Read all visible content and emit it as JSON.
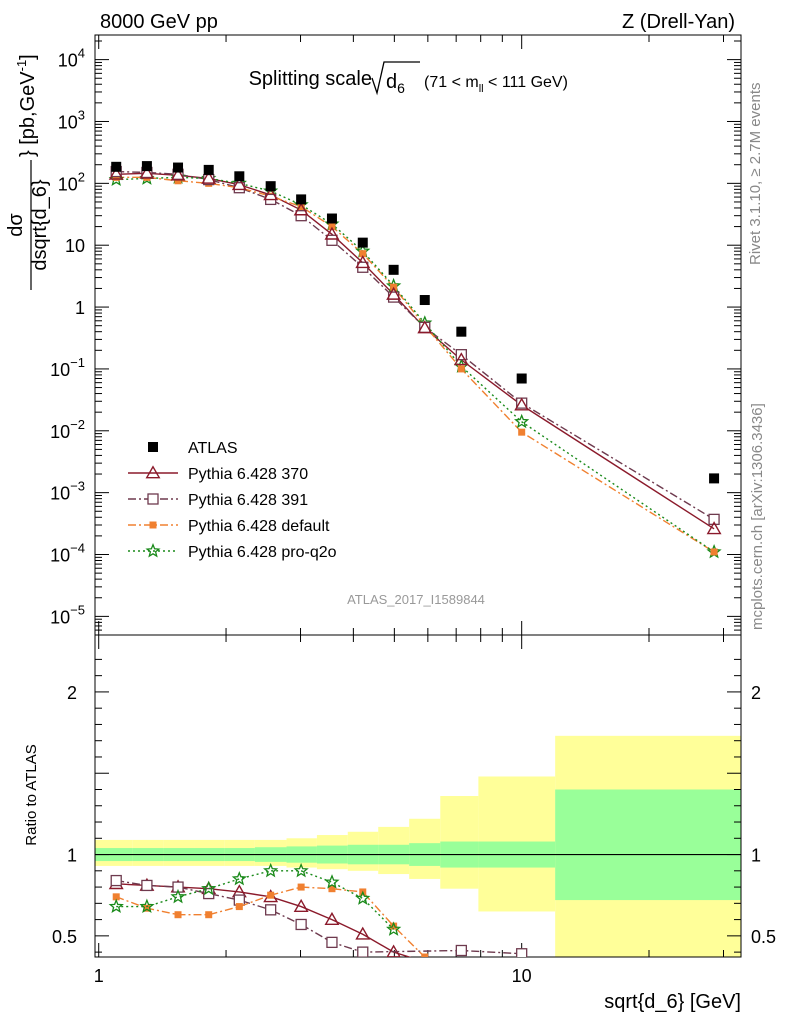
{
  "header": {
    "left": "8000 GeV pp",
    "right": "Z (Drell-Yan)"
  },
  "side_labels": {
    "rivet": "Rivet 3.1.10, ≥ 2.7M events",
    "mcplots": "mcplots.cern.ch [arXiv:1306.3436]"
  },
  "watermark": "ATLAS_2017_I1589844",
  "chart_data": [
    {
      "type": "scatter",
      "title": "Splitting scale √d₆ (71 < mₗₗ < 111 GeV)",
      "title_main": "Splitting scale",
      "title_sub": "(71 < m",
      "title_sub_ll": "ll",
      "title_sub_end": " < 111 GeV)",
      "ylabel": "dσ / dsqrt{d_6} [pb,GeV⁻¹]",
      "ylabel_num": "dσ",
      "ylabel_den": "dsqrt{d_6}",
      "ylabel_unit": "} [pb,GeV",
      "xlabel": "sqrt{d_6} [GeV]",
      "xscale": "log",
      "yscale": "log",
      "xlim": [
        0.98,
        33
      ],
      "ylim": [
        5e-06,
        25000
      ],
      "x_ticks": [
        {
          "label": "1",
          "value": 1
        },
        {
          "label": "10",
          "value": 10
        }
      ],
      "y_ticks": [
        {
          "label": "10",
          "sup": "4",
          "value": 10000
        },
        {
          "label": "10",
          "sup": "3",
          "value": 1000
        },
        {
          "label": "10",
          "sup": "2",
          "value": 100
        },
        {
          "label": "10",
          "sup": "",
          "value": 10
        },
        {
          "label": "1",
          "sup": "",
          "value": 1
        },
        {
          "label": "10",
          "sup": "−1",
          "value": 0.1
        },
        {
          "label": "10",
          "sup": "−2",
          "value": 0.01
        },
        {
          "label": "10",
          "sup": "−3",
          "value": 0.001
        },
        {
          "label": "10",
          "sup": "−4",
          "value": 0.0001
        },
        {
          "label": "10",
          "sup": "−5",
          "value": 1e-05
        }
      ],
      "legend_position": "bottom-left",
      "series": [
        {
          "name": "ATLAS",
          "color": "#000000",
          "marker": "square-filled",
          "line": "none",
          "x": [
            1.1,
            1.3,
            1.54,
            1.82,
            2.15,
            2.55,
            3.01,
            3.56,
            4.21,
            4.98,
            5.9,
            7.2,
            10.0,
            28.5
          ],
          "y": [
            185,
            190,
            180,
            165,
            130,
            90,
            55,
            27,
            11,
            4,
            1.3,
            0.4,
            0.07,
            0.0017
          ]
        },
        {
          "name": "Pythia 6.428 370",
          "color": "#8b1a2b",
          "marker": "triangle-open",
          "line": "solid",
          "x": [
            1.1,
            1.3,
            1.54,
            1.82,
            2.15,
            2.55,
            3.01,
            3.56,
            4.21,
            4.98,
            5.9,
            7.2,
            10.0,
            28.5
          ],
          "y": [
            140,
            145,
            135,
            120,
            95,
            65,
            37,
            15,
            5.2,
            1.6,
            0.46,
            0.14,
            0.026,
            0.00026
          ]
        },
        {
          "name": "Pythia 6.428 391",
          "color": "#6e3a4e",
          "marker": "square-open",
          "line": "dashdot",
          "x": [
            1.1,
            1.3,
            1.54,
            1.82,
            2.15,
            2.55,
            3.01,
            3.56,
            4.21,
            4.98,
            5.9,
            7.2,
            10.0,
            28.5
          ],
          "y": [
            155,
            150,
            140,
            115,
            85,
            55,
            30,
            12,
            4.4,
            1.45,
            0.47,
            0.17,
            0.028,
            0.00037
          ]
        },
        {
          "name": "Pythia 6.428 default",
          "color": "#f08030",
          "marker": "square-filled",
          "line": "dashdot",
          "x": [
            1.1,
            1.3,
            1.54,
            1.82,
            2.15,
            2.55,
            3.01,
            3.56,
            4.21,
            4.98,
            5.9,
            7.2,
            10.0,
            28.5
          ],
          "y": [
            125,
            125,
            110,
            100,
            85,
            62,
            42,
            20,
            7.3,
            2.1,
            0.5,
            0.1,
            0.0095,
            0.00011
          ]
        },
        {
          "name": "Pythia 6.428 pro-q2o",
          "color": "#1a8a1a",
          "marker": "star",
          "line": "dotted",
          "x": [
            1.1,
            1.3,
            1.54,
            1.82,
            2.15,
            2.55,
            3.01,
            3.56,
            4.21,
            4.98,
            5.9,
            7.2,
            10.0,
            28.5
          ],
          "y": [
            115,
            120,
            125,
            120,
            100,
            75,
            45,
            22,
            8,
            2.2,
            0.55,
            0.11,
            0.014,
            0.00011
          ]
        }
      ]
    },
    {
      "type": "scatter",
      "ylabel": "Ratio to ATLAS",
      "xscale": "log",
      "xlim": [
        0.98,
        33
      ],
      "ylim": [
        0.37,
        2.35
      ],
      "y_ticks": [
        {
          "label": "0.5",
          "value": 0.5
        },
        {
          "label": "1",
          "value": 1
        },
        {
          "label": "2",
          "value": 2
        }
      ],
      "reference_line": 1,
      "bands": {
        "edges": [
          0.98,
          1.2,
          1.42,
          1.68,
          1.98,
          2.34,
          2.78,
          3.28,
          3.88,
          4.58,
          5.42,
          6.42,
          7.9,
          12.0,
          33.0
        ],
        "inner": [
          [
            0.96,
            1.04
          ],
          [
            0.96,
            1.04
          ],
          [
            0.96,
            1.04
          ],
          [
            0.96,
            1.04
          ],
          [
            0.96,
            1.04
          ],
          [
            0.955,
            1.045
          ],
          [
            0.95,
            1.05
          ],
          [
            0.945,
            1.055
          ],
          [
            0.94,
            1.06
          ],
          [
            0.94,
            1.06
          ],
          [
            0.93,
            1.07
          ],
          [
            0.92,
            1.08
          ],
          [
            0.92,
            1.08
          ],
          [
            0.72,
            1.4
          ]
        ],
        "outer": [
          [
            0.93,
            1.09
          ],
          [
            0.93,
            1.09
          ],
          [
            0.93,
            1.09
          ],
          [
            0.93,
            1.09
          ],
          [
            0.93,
            1.09
          ],
          [
            0.93,
            1.09
          ],
          [
            0.92,
            1.1
          ],
          [
            0.91,
            1.12
          ],
          [
            0.9,
            1.14
          ],
          [
            0.88,
            1.17
          ],
          [
            0.85,
            1.22
          ],
          [
            0.79,
            1.36
          ],
          [
            0.65,
            1.48
          ],
          [
            0.37,
            1.73
          ]
        ],
        "inner_color": "#99ff99",
        "outer_color": "#ffff99"
      },
      "series": [
        {
          "name": "Pythia 6.428 370",
          "x": [
            1.1,
            1.3,
            1.54,
            1.82,
            2.15,
            2.55,
            3.01,
            3.56,
            4.21,
            4.98,
            5.9
          ],
          "y": [
            0.82,
            0.81,
            0.8,
            0.79,
            0.77,
            0.74,
            0.68,
            0.6,
            0.51,
            0.4,
            0.34
          ]
        },
        {
          "name": "Pythia 6.428 391",
          "x": [
            1.1,
            1.3,
            1.54,
            1.82,
            2.15,
            2.55,
            3.01,
            3.56,
            4.21,
            7.2,
            10.0
          ],
          "y": [
            0.84,
            0.81,
            0.8,
            0.76,
            0.72,
            0.66,
            0.57,
            0.46,
            0.4,
            0.41,
            0.39
          ]
        },
        {
          "name": "Pythia 6.428 default",
          "x": [
            1.1,
            1.3,
            1.54,
            1.82,
            2.15,
            2.55,
            3.01,
            3.56,
            4.21,
            4.98,
            5.9
          ],
          "y": [
            0.74,
            0.67,
            0.63,
            0.63,
            0.68,
            0.75,
            0.8,
            0.79,
            0.77,
            0.56,
            0.37
          ]
        },
        {
          "name": "Pythia 6.428 pro-q2o",
          "x": [
            1.1,
            1.3,
            1.54,
            1.82,
            2.15,
            2.55,
            3.01,
            3.56,
            4.21,
            4.98
          ],
          "y": [
            0.68,
            0.68,
            0.74,
            0.79,
            0.85,
            0.9,
            0.9,
            0.83,
            0.73,
            0.54
          ]
        }
      ]
    }
  ]
}
